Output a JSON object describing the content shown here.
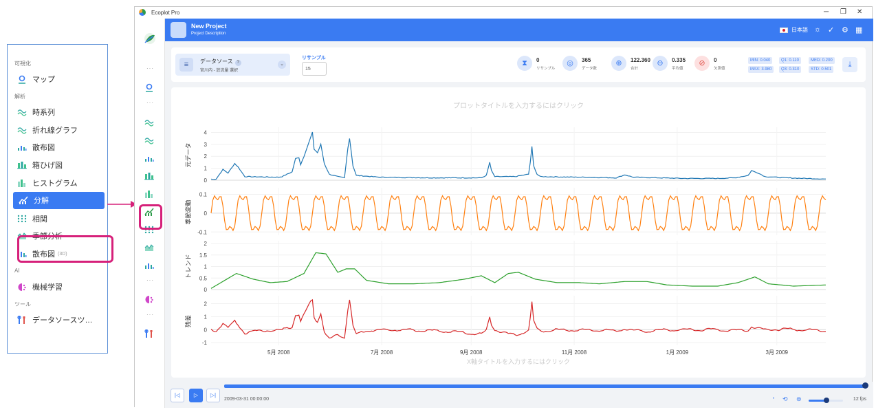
{
  "menu": {
    "sections": [
      {
        "label": "可視化",
        "items": [
          {
            "label": "マップ",
            "icon": "map-pin-icon"
          }
        ]
      },
      {
        "label": "解析",
        "items": [
          {
            "label": "時系列",
            "icon": "wave-icon"
          },
          {
            "label": "折れ線グラフ",
            "icon": "wave-icon"
          },
          {
            "label": "散布図",
            "icon": "scatter-icon"
          },
          {
            "label": "箱ひげ図",
            "icon": "boxplot-icon"
          },
          {
            "label": "ヒストグラム",
            "icon": "histogram-icon"
          },
          {
            "label": "分解",
            "icon": "decompose-icon",
            "active": true
          },
          {
            "label": "相関",
            "icon": "correlation-icon"
          },
          {
            "label": "季節分析",
            "icon": "seasonal-icon"
          },
          {
            "label": "散布図",
            "suffix": "(3D)",
            "icon": "scatter3d-icon"
          }
        ]
      },
      {
        "label": "AI",
        "items": [
          {
            "label": "機械学習",
            "icon": "brain-icon"
          }
        ]
      },
      {
        "label": "ツール",
        "items": [
          {
            "label": "データソースツ…",
            "icon": "tools-icon"
          }
        ]
      }
    ]
  },
  "window": {
    "title": "Ecoplot Pro"
  },
  "header": {
    "project_title": "New Project",
    "project_desc": "Project Description",
    "language": "日本語"
  },
  "toolbar": {
    "datasource_title": "データソース",
    "datasource_help": "?",
    "datasource_sub": "宮川内 - 放流量 選択",
    "resample_label": "リサンプル",
    "resample_value": "15",
    "stats": [
      {
        "value": "0",
        "label": "リサンプル"
      },
      {
        "value": "365",
        "label": "データ数"
      },
      {
        "value": "122.360",
        "label": "合計"
      },
      {
        "value": "0.335",
        "label": "平均値"
      },
      {
        "value": "0",
        "label": "欠測値"
      }
    ],
    "quantiles": {
      "min": "MIN: 0.040",
      "max": "MAX: 3.980",
      "q1": "Q1:  0.110",
      "q3": "Q3:  0.310",
      "med": "MED: 0.200",
      "std": "STD: 0.501"
    }
  },
  "plot": {
    "title_placeholder": "プロットタイトルを入力するにはクリック",
    "xaxis_placeholder": "X軸タイトルを入力するにはクリック"
  },
  "playback": {
    "timestamp": "2009-03-31 00:00:00",
    "fps": "12 fps",
    "progress": 1.0,
    "speed": 0.55
  },
  "chart_data": {
    "type": "line",
    "x_start": "2008-04-01",
    "x_end": "2009-03-31",
    "x_ticks": [
      "5月 2008",
      "7月 2008",
      "9月 2008",
      "11月 2008",
      "1月 2009",
      "3月 2009"
    ],
    "series": [
      {
        "name": "元データ",
        "color": "#1f77b4",
        "yticks": [
          "0",
          "1",
          "2",
          "3",
          "4"
        ],
        "ylim": [
          0,
          4.2
        ],
        "peaks": [
          [
            0.2,
            0.05
          ],
          [
            3,
            0.1
          ],
          [
            7,
            0.9
          ],
          [
            10,
            0.6
          ],
          [
            14,
            1.4
          ],
          [
            16,
            1.1
          ],
          [
            20,
            0.3
          ],
          [
            40,
            0.25
          ],
          [
            42,
            0.3
          ],
          [
            48,
            0.7
          ],
          [
            50,
            1.8
          ],
          [
            52,
            1.9
          ],
          [
            53,
            1.3
          ],
          [
            55,
            2.0
          ],
          [
            57,
            2.8
          ],
          [
            60,
            4.0
          ],
          [
            61,
            2.6
          ],
          [
            63,
            2.3
          ],
          [
            65,
            3.0
          ],
          [
            67,
            1.4
          ],
          [
            70,
            0.5
          ],
          [
            75,
            0.3
          ],
          [
            79,
            0.2
          ],
          [
            81,
            2.7
          ],
          [
            82,
            3.5
          ],
          [
            84,
            1.2
          ],
          [
            86,
            0.4
          ],
          [
            100,
            0.25
          ],
          [
            130,
            0.2
          ],
          [
            160,
            0.2
          ],
          [
            163,
            0.4
          ],
          [
            165,
            1.5
          ],
          [
            166,
            0.8
          ],
          [
            168,
            0.3
          ],
          [
            180,
            0.3
          ],
          [
            188,
            0.5
          ],
          [
            189,
            1.5
          ],
          [
            190,
            2.8
          ],
          [
            191,
            1.2
          ],
          [
            193,
            0.5
          ],
          [
            195,
            0.3
          ],
          [
            220,
            0.25
          ],
          [
            240,
            0.2
          ],
          [
            245,
            0.45
          ],
          [
            250,
            0.25
          ],
          [
            280,
            0.15
          ],
          [
            300,
            0.15
          ],
          [
            310,
            0.2
          ],
          [
            318,
            0.4
          ],
          [
            320,
            0.8
          ],
          [
            324,
            0.6
          ],
          [
            328,
            0.3
          ],
          [
            340,
            0.2
          ],
          [
            364,
            0.1
          ]
        ]
      },
      {
        "name": "季節変動",
        "color": "#ff7f0e",
        "yticks": [
          "-0.1",
          "0",
          "0.1"
        ],
        "ylim": [
          -0.11,
          0.12
        ]
      },
      {
        "name": "トレンド",
        "color": "#2ca02c",
        "yticks": [
          "0",
          "0.5",
          "1",
          "1.5",
          "2"
        ],
        "ylim": [
          0,
          2.0
        ],
        "points": [
          [
            0,
            0.05
          ],
          [
            15,
            0.7
          ],
          [
            25,
            0.45
          ],
          [
            35,
            0.3
          ],
          [
            45,
            0.35
          ],
          [
            55,
            0.7
          ],
          [
            62,
            1.6
          ],
          [
            68,
            1.55
          ],
          [
            75,
            0.75
          ],
          [
            80,
            0.9
          ],
          [
            85,
            0.9
          ],
          [
            92,
            0.4
          ],
          [
            105,
            0.25
          ],
          [
            120,
            0.25
          ],
          [
            135,
            0.3
          ],
          [
            150,
            0.45
          ],
          [
            160,
            0.6
          ],
          [
            168,
            0.3
          ],
          [
            176,
            0.7
          ],
          [
            182,
            0.75
          ],
          [
            192,
            0.45
          ],
          [
            205,
            0.3
          ],
          [
            218,
            0.3
          ],
          [
            230,
            0.25
          ],
          [
            245,
            0.35
          ],
          [
            258,
            0.35
          ],
          [
            270,
            0.2
          ],
          [
            285,
            0.15
          ],
          [
            300,
            0.15
          ],
          [
            312,
            0.3
          ],
          [
            322,
            0.55
          ],
          [
            330,
            0.25
          ],
          [
            345,
            0.15
          ],
          [
            364,
            0.2
          ]
        ]
      },
      {
        "name": "残差",
        "color": "#d62728",
        "yticks": [
          "-1",
          "0",
          "1",
          "2"
        ],
        "ylim": [
          -1.1,
          2.4
        ]
      }
    ]
  }
}
